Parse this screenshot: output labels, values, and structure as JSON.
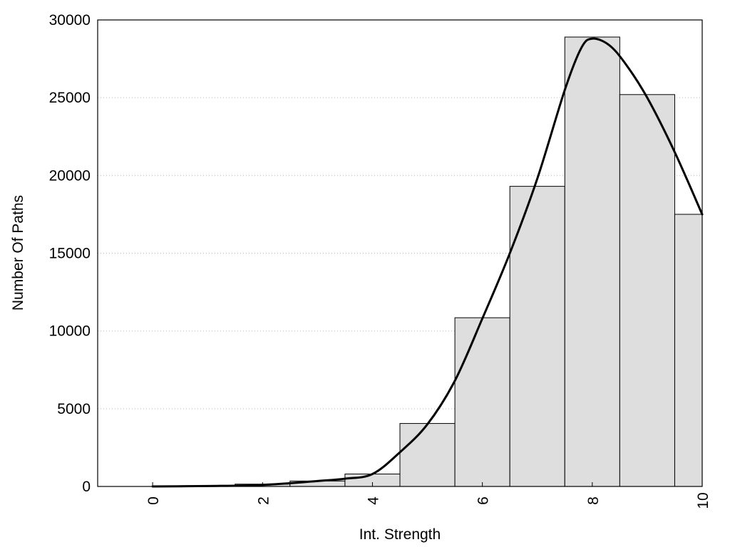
{
  "chart_data": {
    "type": "bar",
    "title": "",
    "xlabel": "Int. Strength",
    "ylabel": "Number Of Paths",
    "xlim": [
      -1,
      10
    ],
    "ylim": [
      0,
      30000
    ],
    "grid": "horizontal-dotted",
    "legend": "none",
    "x_ticks": [
      "0",
      "2",
      "4",
      "6",
      "8",
      "10"
    ],
    "y_ticks": [
      "0",
      "5000",
      "10000",
      "15000",
      "20000",
      "25000",
      "30000"
    ],
    "bins": [
      {
        "x_start": 0,
        "x_end": 0.5,
        "value": 20
      },
      {
        "x_start": 0.5,
        "x_end": 1.5,
        "value": 50
      },
      {
        "x_start": 1.5,
        "x_end": 2.5,
        "value": 150
      },
      {
        "x_start": 2.5,
        "x_end": 3.5,
        "value": 350
      },
      {
        "x_start": 3.5,
        "x_end": 4.5,
        "value": 800
      },
      {
        "x_start": 4.5,
        "x_end": 5.5,
        "value": 4050
      },
      {
        "x_start": 5.5,
        "x_end": 6.5,
        "value": 10850
      },
      {
        "x_start": 6.5,
        "x_end": 7.5,
        "value": 19300
      },
      {
        "x_start": 7.5,
        "x_end": 8.5,
        "value": 28900
      },
      {
        "x_start": 8.5,
        "x_end": 9.5,
        "value": 25200
      },
      {
        "x_start": 9.5,
        "x_end": 10,
        "value": 17500
      }
    ],
    "curve": {
      "x": [
        0,
        1,
        2,
        3,
        3.5,
        4,
        4.5,
        5,
        5.5,
        6,
        6.5,
        7,
        7.5,
        7.8,
        8,
        8.3,
        8.6,
        9,
        9.5,
        10
      ],
      "y": [
        0,
        30,
        100,
        350,
        500,
        800,
        2200,
        4000,
        6800,
        10800,
        15000,
        19800,
        25500,
        28200,
        28800,
        28400,
        27200,
        25000,
        21500,
        17500
      ]
    },
    "colors": {
      "bar_fill": "#dedede",
      "bar_stroke": "#000000",
      "curve": "#000000",
      "grid": "#bbbbbb"
    }
  }
}
